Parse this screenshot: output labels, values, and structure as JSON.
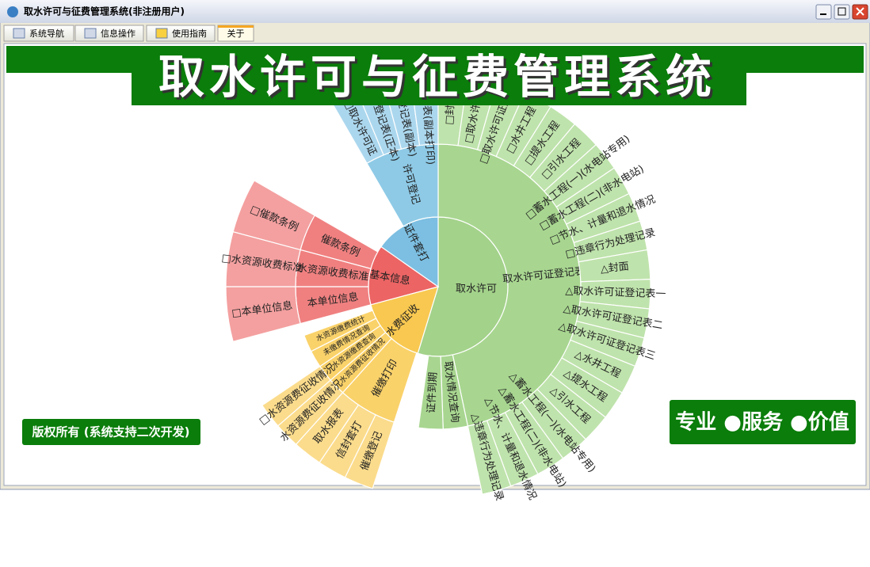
{
  "window": {
    "title": "取水许可与征费管理系统(非注册用户)"
  },
  "tabs": [
    "系统导航",
    "信息操作",
    "使用指南",
    "关于"
  ],
  "banner": {
    "title": "取水许可与征费管理系统"
  },
  "sunburst": {
    "nodes": [
      "取水许可",
      "水费征收",
      "基本信息",
      "证件套打",
      "取水许可证登记表",
      "取水情况查询",
      "证件到期",
      "催缴打印",
      "水资源费征收情况",
      "水资源缴费查询",
      "未缴费情况查询",
      "水资源缴费统计",
      "本单位信息",
      "水资源收费标准",
      "催款条例",
      "许可登记",
      "催缴登记",
      "信封套打",
      "取水报表",
      "水资源费征收情况",
      "□水资源费征收情况",
      "□本单位信息",
      "□水资源收费标准",
      "□催款条例",
      "□取水许可证",
      "□许可登记表(正本)",
      "□许可登记表(副本)",
      "□许可登记表(副本打印)",
      "□封面",
      "□取水许可证",
      "□取水许可证登记表",
      "□水井工程",
      "□提水工程",
      "□引水工程",
      "□蓄水工程(一)(水电站专用)",
      "□蓄水工程(二)(非水电站)",
      "□节水、计量和退水情况",
      "□违章行为处理记录",
      "△封面",
      "△取水许可证登记表一",
      "△取水许可证登记表二",
      "△取水许可证登记表三",
      "△水井工程",
      "△提水工程",
      "△引水工程",
      "△蓄水工程(一)(水电站专用)",
      "△蓄水工程(二)(非水电站)",
      "△节水、计量和退水情况",
      "△违章行为处理记录"
    ]
  },
  "footer": {
    "copyright": "版权所有 (系统支持二次开发)",
    "slogan": "专业 ●服务 ●价值"
  }
}
